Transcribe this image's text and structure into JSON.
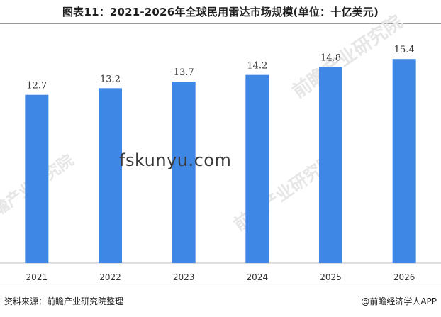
{
  "title": "图表11：2021-2026年全球民用雷达市场规模(单位：十亿美元)",
  "source": "资料来源：前瞻产业研究院整理",
  "credit": "@前瞻经济学人APP",
  "watermark": "fskunyu.com",
  "logo_text": "前瞻产业研究院",
  "colors": {
    "bar": "#3f87e5",
    "axis": "#bfbfbf"
  },
  "chart_data": {
    "type": "bar",
    "title": "图表11：2021-2026年全球民用雷达市场规模(单位：十亿美元)",
    "categories": [
      "2021",
      "2022",
      "2023",
      "2024",
      "2025",
      "2026"
    ],
    "values": [
      12.7,
      13.2,
      13.7,
      14.2,
      14.8,
      15.4
    ],
    "data_labels": [
      "12.7",
      "13.2",
      "13.7",
      "14.2",
      "14.8",
      "15.4"
    ],
    "xlabel": "",
    "ylabel": "",
    "ylim": [
      0,
      17.5
    ],
    "grid": false,
    "legend": "none"
  }
}
